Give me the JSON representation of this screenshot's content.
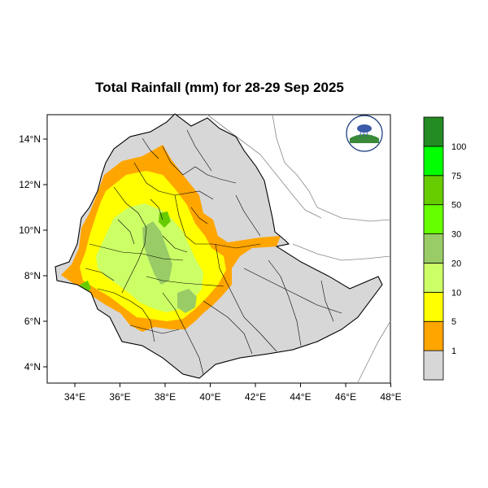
{
  "title": "Total Rainfall (mm) for 28-29 Sep 2025",
  "x_ticks": [
    "34°E",
    "36°E",
    "38°E",
    "40°E",
    "42°E",
    "44°E",
    "46°E",
    "48°E"
  ],
  "y_ticks": [
    "14°N",
    "12°N",
    "10°N",
    "8°N",
    "6°N",
    "4°N"
  ],
  "legend": {
    "labels": [
      "1",
      "5",
      "10",
      "20",
      "30",
      "50",
      "75",
      "100"
    ],
    "colors": [
      "#d7d7d7",
      "#ffa500",
      "#ffff00",
      "#ccff66",
      "#99cc66",
      "#66ff00",
      "#66cc00",
      "#00ff00",
      "#228b22"
    ]
  },
  "logo": {
    "text": ""
  },
  "colors": {
    "land": "#d7d7d7",
    "sea": "#ffffff",
    "border": "#000000",
    "neighbor_border": "#888888"
  }
}
